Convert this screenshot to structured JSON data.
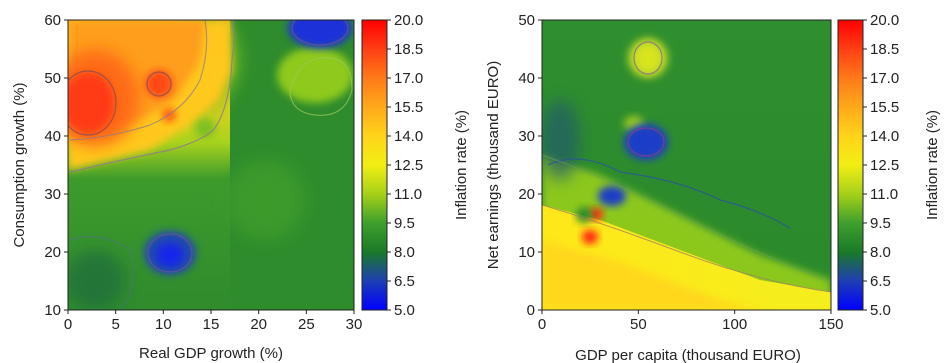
{
  "chart_data": [
    {
      "type": "heatmap",
      "xlabel": "Real GDP growth (%)",
      "ylabel": "Consumption growth (%)",
      "xlim": [
        0,
        30
      ],
      "ylim": [
        10,
        60
      ],
      "xticks": [
        "0",
        "5",
        "10",
        "15",
        "20",
        "25",
        "30"
      ],
      "yticks": [
        "10",
        "20",
        "30",
        "40",
        "50",
        "60"
      ],
      "colorbar": {
        "label": "Inflation rate (%)",
        "range": [
          5.0,
          20.0
        ],
        "ticks": [
          "20.0",
          "18.5",
          "17.0",
          "15.5",
          "14.0",
          "12.5",
          "11.0",
          "9.5",
          "8.0",
          "6.5",
          "5.0"
        ]
      },
      "features": [
        {
          "x": 2.5,
          "y": 45.5,
          "value": 20.0
        },
        {
          "x": 9.5,
          "y": 48.5,
          "value": 19.0
        },
        {
          "x": 10.5,
          "y": 43.5,
          "value": 17.5
        },
        {
          "x": 14.0,
          "y": 41.5,
          "value": 9.5
        },
        {
          "x": 10.5,
          "y": 24.0,
          "value": 5.5
        },
        {
          "x": 26.5,
          "y": 59.0,
          "value": 5.5
        },
        {
          "x": 25.5,
          "y": 47.5,
          "value": 11.0
        },
        {
          "x": 21.0,
          "y": 31.0,
          "value": 9.8
        }
      ]
    },
    {
      "type": "heatmap",
      "xlabel": "GDP per capita (thousand EURO)",
      "ylabel": "Net earnings (thousand EURO)",
      "xlim": [
        0,
        150
      ],
      "ylim": [
        0,
        50
      ],
      "xticks": [
        "0",
        "50",
        "100",
        "150"
      ],
      "yticks": [
        "0",
        "10",
        "20",
        "30",
        "40",
        "50"
      ],
      "colorbar": {
        "label": "Inflation rate (%)",
        "range": [
          5.0,
          20.0
        ],
        "ticks": [
          "20.0",
          "18.5",
          "17.0",
          "15.5",
          "14.0",
          "12.5",
          "11.0",
          "9.5",
          "8.0",
          "6.5",
          "5.0"
        ]
      },
      "features": [
        {
          "x": 55,
          "y": 43.5,
          "value": 11.0
        },
        {
          "x": 47,
          "y": 32.5,
          "value": 10.5
        },
        {
          "x": 38,
          "y": 29.5,
          "value": 5.5
        },
        {
          "x": 36,
          "y": 19.5,
          "value": 6.5
        },
        {
          "x": 30,
          "y": 17.0,
          "value": 19.5
        },
        {
          "x": 25,
          "y": 13.0,
          "value": 19.5
        },
        {
          "x": 20,
          "y": 16.5,
          "value": 8.0
        }
      ]
    }
  ]
}
